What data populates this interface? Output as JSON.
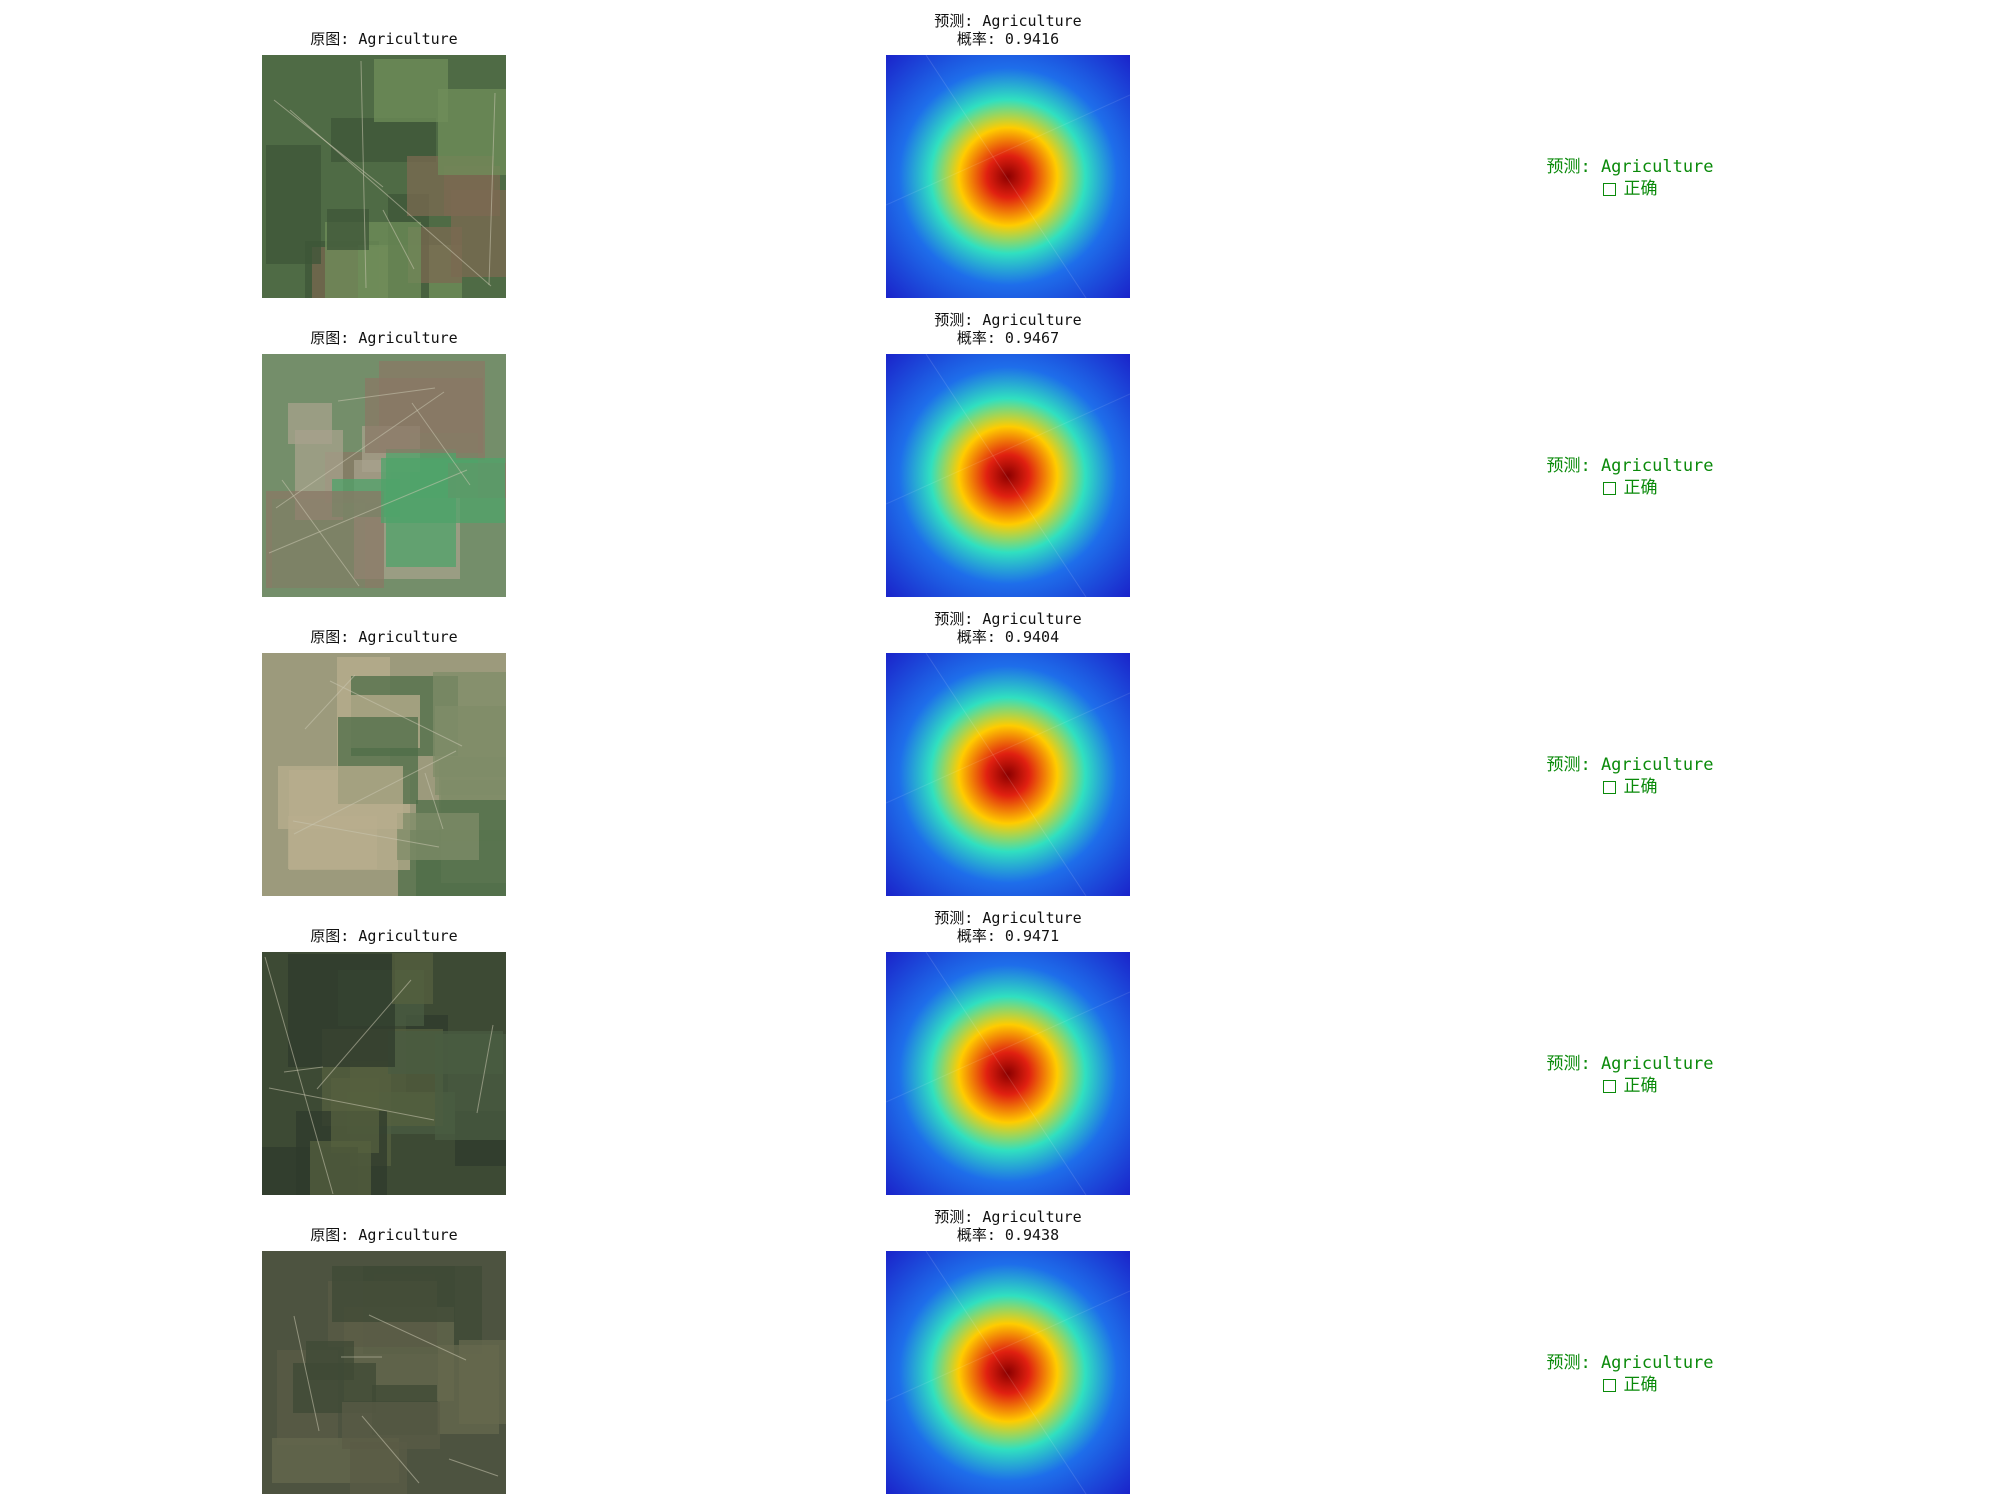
{
  "rows": [
    {
      "original_caption": "原图: Agriculture",
      "prediction_caption": "预测: Agriculture",
      "probability_caption": "概率: 0.9416",
      "result_prediction": "预测: Agriculture",
      "result_correct": "正确",
      "colors": {
        "base": "#4f6b45",
        "field1": "#3e5638",
        "field2": "#7b6a52",
        "field3": "#6f8e5a"
      }
    },
    {
      "original_caption": "原图: Agriculture",
      "prediction_caption": "预测: Agriculture",
      "probability_caption": "概率: 0.9467",
      "result_prediction": "预测: Agriculture",
      "result_correct": "正确",
      "colors": {
        "base": "#748e6a",
        "field1": "#4fa36a",
        "field2": "#8a7866",
        "field3": "#a7a28c"
      }
    },
    {
      "original_caption": "原图: Agriculture",
      "prediction_caption": "预测: Agriculture",
      "probability_caption": "概率: 0.9404",
      "result_prediction": "预测: Agriculture",
      "result_correct": "正确",
      "colors": {
        "base": "#9c9a7c",
        "field1": "#7f8c68",
        "field2": "#b8ad8d",
        "field3": "#4f6e48"
      }
    },
    {
      "original_caption": "原图: Agriculture",
      "prediction_caption": "预测: Agriculture",
      "probability_caption": "概率: 0.9471",
      "result_prediction": "预测: Agriculture",
      "result_correct": "正确",
      "colors": {
        "base": "#3d4a34",
        "field1": "#2f3b2c",
        "field2": "#56603f",
        "field3": "#4a5c42"
      }
    },
    {
      "original_caption": "原图: Agriculture",
      "prediction_caption": "预测: Agriculture",
      "probability_caption": "概率: 0.9438",
      "result_prediction": "预测: Agriculture",
      "result_correct": "正确",
      "colors": {
        "base": "#4d5340",
        "field1": "#5a5b46",
        "field2": "#3f4a36",
        "field3": "#65684e"
      }
    }
  ],
  "palette": {
    "caption_text": "#111111",
    "correct_text": "#0a8a0a",
    "heatmap": [
      "#8b0000",
      "#e02010",
      "#ffcc00",
      "#30e0c0",
      "#1e6eea",
      "#1a1fc8"
    ]
  }
}
